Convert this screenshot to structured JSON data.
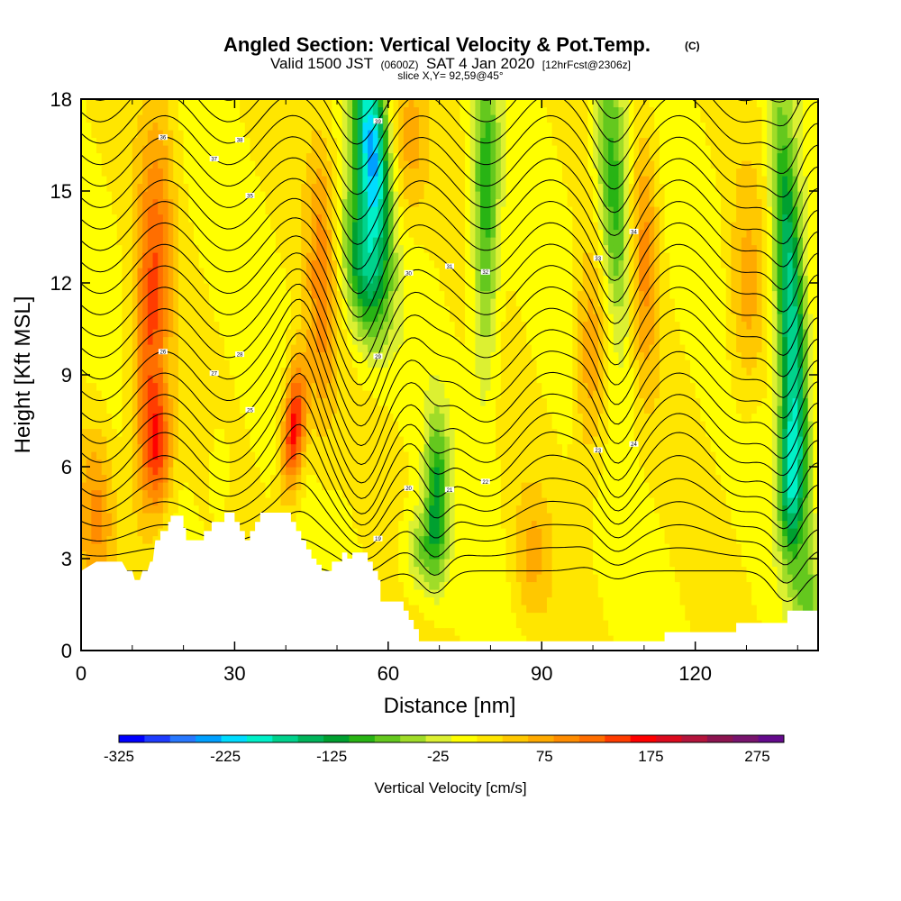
{
  "chart_data": {
    "type": "heatmap",
    "title": "Angled Section: Vertical Velocity & Pot.Temp.",
    "title_tag": "(C)",
    "subtitle": {
      "valid": "Valid 1500 JST",
      "utc": "(0600Z)",
      "date": "SAT 4 Jan 2020",
      "fcst": "[12hrFcst@2306z]"
    },
    "slice": "slice X,Y= 92,59@45°",
    "xlabel": "Distance [nm]",
    "ylabel": "Height [Kft MSL]",
    "xlim": [
      0,
      144
    ],
    "ylim": [
      0,
      18
    ],
    "xticks": [
      0,
      30,
      60,
      90,
      120
    ],
    "xticks_minor": [
      10,
      20,
      40,
      50,
      70,
      80,
      100,
      110,
      130,
      140
    ],
    "yticks": [
      0,
      3,
      6,
      9,
      12,
      15,
      18
    ],
    "colorbar": {
      "label": "Vertical Velocity [cm/s]",
      "min": -325,
      "max": 300,
      "ticks": [
        -325,
        -225,
        -125,
        -25,
        75,
        175,
        275
      ],
      "colors": [
        "#0000ff",
        "#1e3cff",
        "#2878ff",
        "#00a0ff",
        "#00dcff",
        "#00f0c8",
        "#00d28c",
        "#00b45a",
        "#00a030",
        "#28b414",
        "#64c81e",
        "#a0dc28",
        "#dcf032",
        "#ffff00",
        "#ffe600",
        "#ffc800",
        "#ffaa00",
        "#ff8c00",
        "#ff6e00",
        "#ff3c00",
        "#ff0000",
        "#dc0a1e",
        "#b4143c",
        "#8c1450",
        "#78146e",
        "#640a8c"
      ]
    },
    "contour_labels": [
      "16",
      "17",
      "18",
      "19",
      "20",
      "21",
      "22",
      "23",
      "24",
      "25",
      "26",
      "27",
      "28",
      "29",
      "30",
      "31",
      "32",
      "33",
      "34",
      "35",
      "36",
      "37",
      "38",
      "39",
      "40"
    ],
    "terrain_kft": [
      [
        0,
        2.6
      ],
      [
        3,
        2.9
      ],
      [
        8,
        2.9
      ],
      [
        9,
        2.6
      ],
      [
        10,
        2.6
      ],
      [
        10.5,
        2.3
      ],
      [
        11.5,
        2.3
      ],
      [
        12,
        2.6
      ],
      [
        13,
        2.6
      ],
      [
        13.5,
        2.9
      ],
      [
        14,
        2.9
      ],
      [
        14.5,
        3.6
      ],
      [
        14.5,
        3.6
      ],
      [
        15.5,
        3.6
      ],
      [
        15.5,
        3.9
      ],
      [
        17,
        3.9
      ],
      [
        17,
        4.2
      ],
      [
        17.5,
        4.2
      ],
      [
        17.5,
        4.4
      ],
      [
        20,
        4.4
      ],
      [
        20,
        4.0
      ],
      [
        20.5,
        4.0
      ],
      [
        20.5,
        3.6
      ],
      [
        21,
        3.6
      ],
      [
        21,
        3.6
      ],
      [
        22,
        3.6
      ],
      [
        22,
        3.6
      ],
      [
        24,
        3.6
      ],
      [
        24,
        3.9
      ],
      [
        25.5,
        3.9
      ],
      [
        25.5,
        4.2
      ],
      [
        28,
        4.2
      ],
      [
        28,
        4.5
      ],
      [
        30,
        4.5
      ],
      [
        30,
        4.2
      ],
      [
        31,
        4.2
      ],
      [
        31,
        3.9
      ],
      [
        32,
        3.9
      ],
      [
        32,
        3.6
      ],
      [
        33,
        3.6
      ],
      [
        33,
        3.9
      ],
      [
        34,
        3.9
      ],
      [
        34,
        4.2
      ],
      [
        35,
        4.2
      ],
      [
        35,
        4.5
      ],
      [
        41,
        4.5
      ],
      [
        41,
        4.2
      ],
      [
        42,
        4.2
      ],
      [
        42,
        3.9
      ],
      [
        43,
        3.9
      ],
      [
        43,
        3.6
      ],
      [
        44,
        3.6
      ],
      [
        44,
        3.3
      ],
      [
        45,
        3.3
      ],
      [
        45,
        3.0
      ],
      [
        46,
        3.0
      ],
      [
        46,
        2.8
      ],
      [
        47,
        2.8
      ],
      [
        47,
        2.6
      ],
      [
        49,
        2.6
      ],
      [
        49,
        2.9
      ],
      [
        51,
        2.9
      ],
      [
        51,
        3.2
      ],
      [
        52,
        3.2
      ],
      [
        52,
        3.0
      ],
      [
        53,
        3.0
      ],
      [
        53,
        3.2
      ],
      [
        56,
        3.2
      ],
      [
        56,
        2.9
      ],
      [
        57,
        2.9
      ],
      [
        57,
        2.6
      ],
      [
        58,
        2.6
      ],
      [
        58,
        2.3
      ],
      [
        58.5,
        2.3
      ],
      [
        58.5,
        1.6
      ],
      [
        63,
        1.6
      ],
      [
        63,
        1.3
      ],
      [
        64,
        1.3
      ],
      [
        64,
        1.0
      ],
      [
        65,
        1.0
      ],
      [
        65,
        0.7
      ],
      [
        66,
        0.7
      ],
      [
        66,
        0.3
      ],
      [
        114,
        0.3
      ],
      [
        114,
        0.6
      ],
      [
        128,
        0.6
      ],
      [
        128,
        0.9
      ],
      [
        138,
        0.9
      ],
      [
        138,
        1.3
      ],
      [
        144,
        1.3
      ]
    ]
  }
}
